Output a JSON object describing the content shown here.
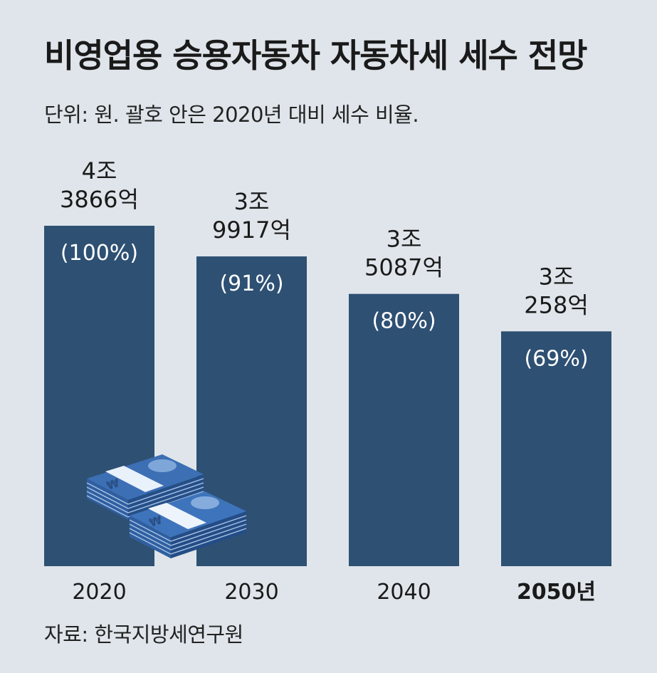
{
  "title": "비영업용 승용자동차 자동차세 세수 전망",
  "subtitle": "단위: 원. 괄호 안은 2020년 대비 세수 비율.",
  "source": "자료: 한국지방세연구원",
  "colors": {
    "background": "#dfe5ea",
    "bar": "#2e5073",
    "bar_text": "#ffffff"
  },
  "icons": {
    "money": "money-stack-icon"
  },
  "chart_data": {
    "type": "bar",
    "categories": [
      "2020",
      "2030",
      "2040",
      "2050년"
    ],
    "values": [
      43866,
      39917,
      35087,
      30258
    ],
    "value_labels": [
      [
        "4조",
        "3866억"
      ],
      [
        "3조",
        "9917억"
      ],
      [
        "3조",
        "5087억"
      ],
      [
        "3조",
        "258억"
      ]
    ],
    "ratio_labels": [
      "(100%)",
      "(91%)",
      "(80%)",
      "(69%)"
    ],
    "unit": "억 원",
    "ylim": [
      0,
      43866
    ]
  }
}
